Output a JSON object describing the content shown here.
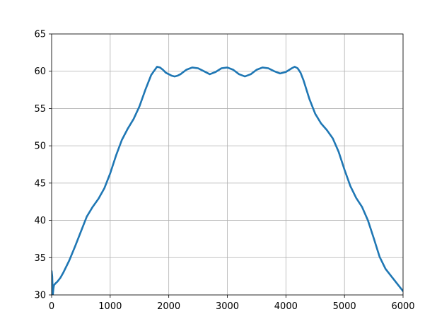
{
  "chart_data": {
    "type": "line",
    "title": "",
    "xlabel": "",
    "ylabel": "",
    "xlim": [
      0,
      6000
    ],
    "ylim": [
      30,
      65
    ],
    "x_ticks": [
      0,
      1000,
      2000,
      3000,
      4000,
      5000,
      6000
    ],
    "y_ticks": [
      30,
      35,
      40,
      45,
      50,
      55,
      60,
      65
    ],
    "x_tick_labels": [
      "0",
      "1000",
      "2000",
      "3000",
      "4000",
      "5000",
      "6000"
    ],
    "y_tick_labels": [
      "30",
      "35",
      "40",
      "45",
      "50",
      "55",
      "60",
      "65"
    ],
    "grid": true,
    "legend": "none",
    "series": [
      {
        "color": "#1f77b4",
        "x": [
          0,
          10,
          20,
          30,
          40,
          60,
          100,
          150,
          200,
          300,
          400,
          500,
          600,
          700,
          800,
          900,
          1000,
          1100,
          1200,
          1300,
          1400,
          1500,
          1600,
          1700,
          1800,
          1850,
          1900,
          1950,
          2000,
          2050,
          2100,
          2150,
          2200,
          2300,
          2400,
          2500,
          2600,
          2700,
          2800,
          2900,
          3000,
          3100,
          3200,
          3300,
          3400,
          3500,
          3600,
          3700,
          3800,
          3900,
          4000,
          4100,
          4150,
          4200,
          4250,
          4300,
          4400,
          4500,
          4600,
          4700,
          4800,
          4900,
          5000,
          5100,
          5200,
          5300,
          5400,
          5500,
          5600,
          5700,
          5800,
          5900,
          6000
        ],
        "y": [
          33.2,
          32.5,
          30.0,
          30.8,
          31.3,
          31.5,
          31.8,
          32.3,
          33.0,
          34.6,
          36.5,
          38.5,
          40.5,
          41.8,
          42.9,
          44.3,
          46.3,
          48.7,
          50.8,
          52.3,
          53.6,
          55.3,
          57.5,
          59.5,
          60.6,
          60.5,
          60.2,
          59.8,
          59.6,
          59.4,
          59.3,
          59.4,
          59.6,
          60.2,
          60.5,
          60.4,
          60.0,
          59.6,
          59.9,
          60.4,
          60.5,
          60.2,
          59.6,
          59.3,
          59.6,
          60.2,
          60.5,
          60.4,
          60.0,
          59.7,
          59.9,
          60.4,
          60.6,
          60.4,
          59.8,
          58.8,
          56.3,
          54.3,
          53.0,
          52.1,
          51.0,
          49.2,
          46.8,
          44.6,
          43.0,
          41.8,
          40.0,
          37.6,
          35.1,
          33.5,
          32.5,
          31.5,
          30.5
        ]
      }
    ]
  }
}
